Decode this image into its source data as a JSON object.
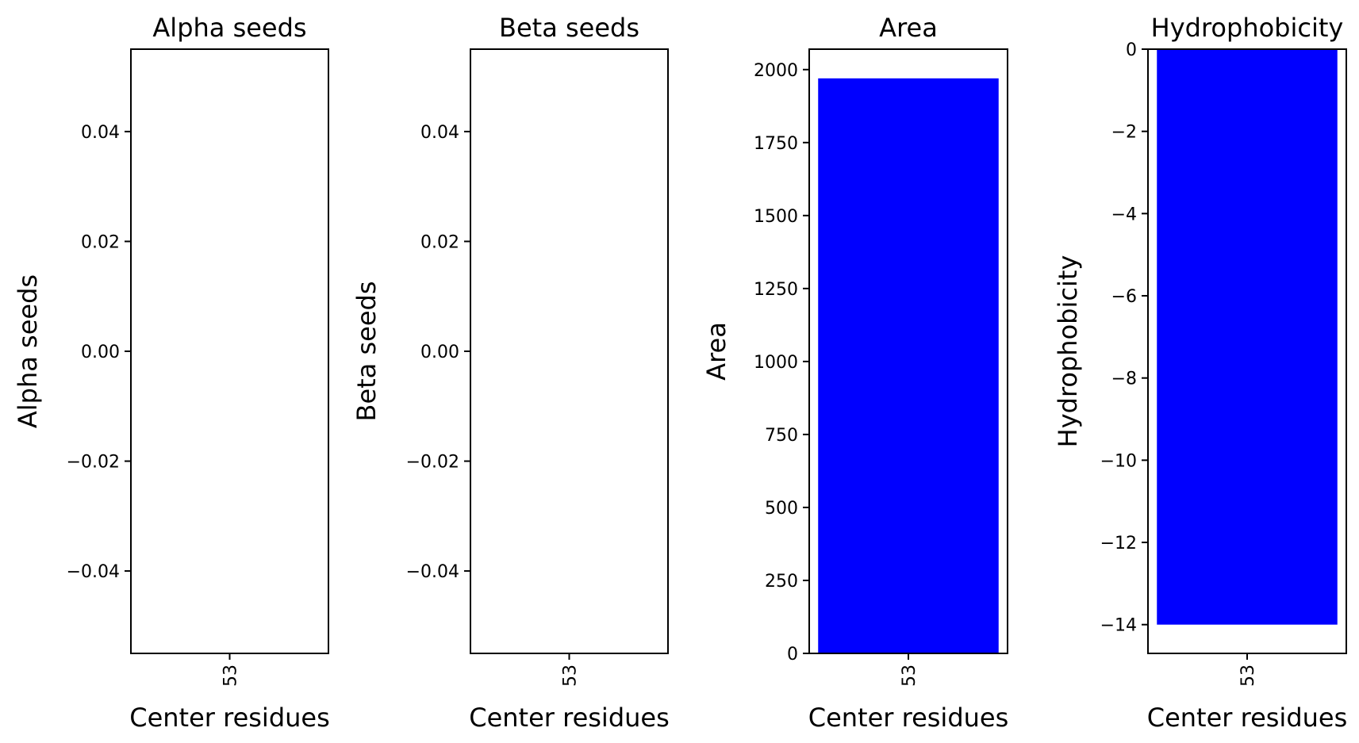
{
  "chart_data": [
    {
      "type": "bar",
      "title": "Alpha seeds",
      "xlabel": "Center residues",
      "ylabel": "Alpha seeds",
      "categories": [
        "53"
      ],
      "values": [
        0
      ],
      "ylim": [
        -0.055,
        0.055
      ],
      "yticks": [
        -0.04,
        -0.02,
        0.0,
        0.02,
        0.04
      ],
      "ytick_labels": [
        "−0.04",
        "−0.02",
        "0.00",
        "0.02",
        "0.04"
      ],
      "bar_color": "#0000ff",
      "grid": false
    },
    {
      "type": "bar",
      "title": "Beta seeds",
      "xlabel": "Center residues",
      "ylabel": "Beta seeds",
      "categories": [
        "53"
      ],
      "values": [
        0
      ],
      "ylim": [
        -0.055,
        0.055
      ],
      "yticks": [
        -0.04,
        -0.02,
        0.0,
        0.02,
        0.04
      ],
      "ytick_labels": [
        "−0.04",
        "−0.02",
        "0.00",
        "0.02",
        "0.04"
      ],
      "bar_color": "#0000ff",
      "grid": false
    },
    {
      "type": "bar",
      "title": "Area",
      "xlabel": "Center residues",
      "ylabel": "Area",
      "categories": [
        "53"
      ],
      "values": [
        1970
      ],
      "ylim": [
        0,
        2070
      ],
      "yticks": [
        0,
        250,
        500,
        750,
        1000,
        1250,
        1500,
        1750,
        2000
      ],
      "ytick_labels": [
        "0",
        "250",
        "500",
        "750",
        "1000",
        "1250",
        "1500",
        "1750",
        "2000"
      ],
      "bar_color": "#0000ff",
      "grid": false
    },
    {
      "type": "bar",
      "title": "Hydrophobicity",
      "xlabel": "Center residues",
      "ylabel": "Hydrophobicity",
      "categories": [
        "53"
      ],
      "values": [
        -14
      ],
      "ylim": [
        -14.7,
        0
      ],
      "yticks": [
        -14,
        -12,
        -10,
        -8,
        -6,
        -4,
        -2,
        0
      ],
      "ytick_labels": [
        "−14",
        "−12",
        "−10",
        "−8",
        "−6",
        "−4",
        "−2",
        "0"
      ],
      "bar_color": "#0000ff",
      "grid": false
    }
  ]
}
